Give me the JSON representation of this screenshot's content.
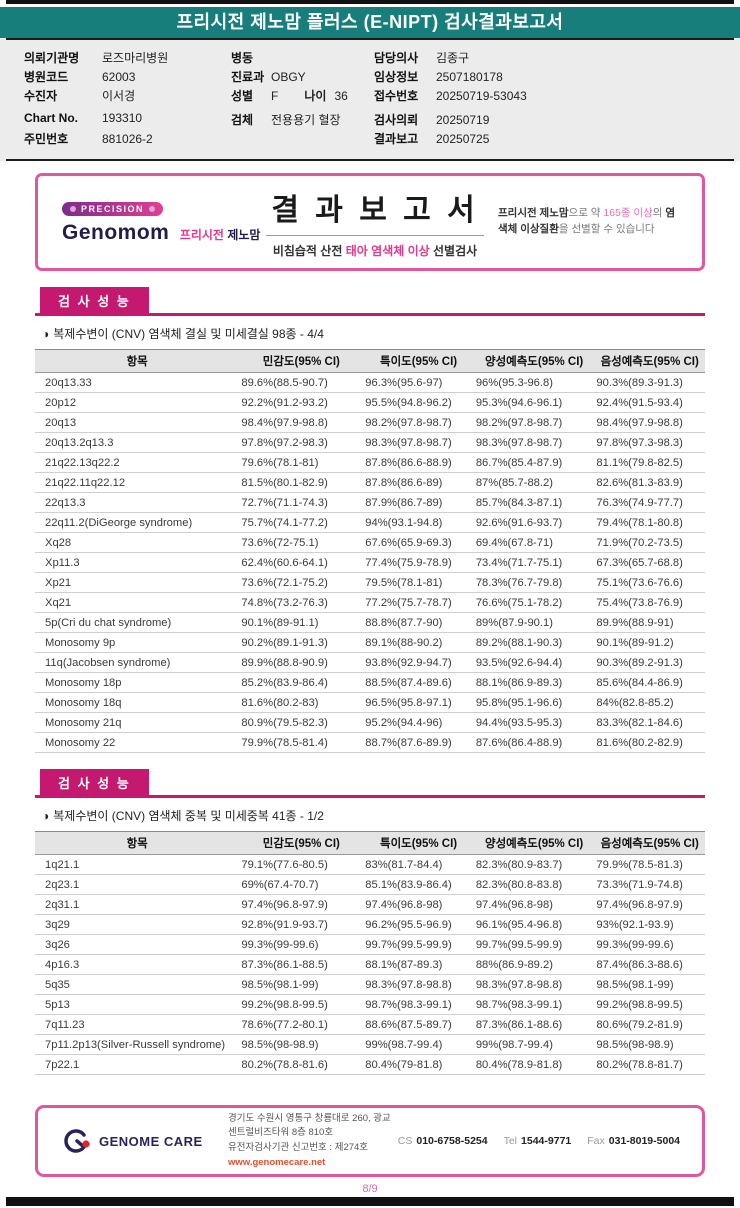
{
  "header": {
    "title": "프리시전 제노맘 플러스 (E-NIPT) 검사결과보고서"
  },
  "info_col1": [
    {
      "label": "의뢰기관명",
      "value": "로즈마리병원"
    },
    {
      "label": "병원코드",
      "value": "62003"
    },
    {
      "label": "수진자",
      "value": "이서경"
    },
    {
      "label": "Chart No.",
      "value": "193310"
    },
    {
      "label": "주민번호",
      "value": "881026-2"
    }
  ],
  "info_col2": [
    {
      "label": "병동",
      "value": ""
    },
    {
      "label": "진료과",
      "value": "OBGY"
    },
    {
      "label": "성별",
      "value": "F",
      "label2": "나이",
      "value2": "36"
    },
    {
      "label": "검체",
      "value": "전용용기 혈장"
    }
  ],
  "info_col3": [
    {
      "label": "담당의사",
      "value": "김종구"
    },
    {
      "label": "임상정보",
      "value": "2507180178"
    },
    {
      "label": "접수번호",
      "value": "20250719-53043"
    },
    {
      "label": "검사의뢰",
      "value": "20250719"
    },
    {
      "label": "결과보고",
      "value": "20250725"
    }
  ],
  "report_banner": {
    "badge": "PRECISION",
    "brand_name": "Genomom",
    "brand_kr_pink": "프리시전",
    "brand_kr_dark": "제노맘",
    "title": "결 과 보 고 서",
    "subtitle_prefix": "비침습적 산전 ",
    "subtitle_highlight": "태아 염색체 이상",
    "subtitle_suffix": " 선별검사",
    "note_seg1_bold": "프리시전 제노맘",
    "note_seg2": "으로 약 ",
    "note_seg3_pink": "165종 이상",
    "note_seg4": "의 ",
    "note_seg5_bold": "염색체 이상질환",
    "note_seg6": "을 선별할 수 있습니다"
  },
  "sections": [
    {
      "heading": "검 사 성 능",
      "bullet": "◑",
      "subtitle": "복제수변이 (CNV) 염색체 결실 및 미세결실 98종 - 4/4",
      "columns": [
        "항목",
        "민감도(95% CI)",
        "특이도(95% CI)",
        "양성예측도(95% CI)",
        "음성예측도(95% CI)"
      ],
      "rows": [
        [
          "20q13.33",
          "89.6%(88.5-90.7)",
          "96.3%(95.6-97)",
          "96%(95.3-96.8)",
          "90.3%(89.3-91.3)"
        ],
        [
          "20p12",
          "92.2%(91.2-93.2)",
          "95.5%(94.8-96.2)",
          "95.3%(94.6-96.1)",
          "92.4%(91.5-93.4)"
        ],
        [
          "20q13",
          "98.4%(97.9-98.8)",
          "98.2%(97.8-98.7)",
          "98.2%(97.8-98.7)",
          "98.4%(97.9-98.8)"
        ],
        [
          "20q13.2q13.3",
          "97.8%(97.2-98.3)",
          "98.3%(97.8-98.7)",
          "98.3%(97.8-98.7)",
          "97.8%(97.3-98.3)"
        ],
        [
          "21q22.13q22.2",
          "79.6%(78.1-81)",
          "87.8%(86.6-88.9)",
          "86.7%(85.4-87.9)",
          "81.1%(79.8-82.5)"
        ],
        [
          "21q22.11q22.12",
          "81.5%(80.1-82.9)",
          "87.8%(86.6-89)",
          "87%(85.7-88.2)",
          "82.6%(81.3-83.9)"
        ],
        [
          "22q13.3",
          "72.7%(71.1-74.3)",
          "87.9%(86.7-89)",
          "85.7%(84.3-87.1)",
          "76.3%(74.9-77.7)"
        ],
        [
          "22q11.2(DiGeorge syndrome)",
          "75.7%(74.1-77.2)",
          "94%(93.1-94.8)",
          "92.6%(91.6-93.7)",
          "79.4%(78.1-80.8)"
        ],
        [
          "Xq28",
          "73.6%(72-75.1)",
          "67.6%(65.9-69.3)",
          "69.4%(67.8-71)",
          "71.9%(70.2-73.5)"
        ],
        [
          "Xp11.3",
          "62.4%(60.6-64.1)",
          "77.4%(75.9-78.9)",
          "73.4%(71.7-75.1)",
          "67.3%(65.7-68.8)"
        ],
        [
          "Xp21",
          "73.6%(72.1-75.2)",
          "79.5%(78.1-81)",
          "78.3%(76.7-79.8)",
          "75.1%(73.6-76.6)"
        ],
        [
          "Xq21",
          "74.8%(73.2-76.3)",
          "77.2%(75.7-78.7)",
          "76.6%(75.1-78.2)",
          "75.4%(73.8-76.9)"
        ],
        [
          "5p(Cri du chat syndrome)",
          "90.1%(89-91.1)",
          "88.8%(87.7-90)",
          "89%(87.9-90.1)",
          "89.9%(88.9-91)"
        ],
        [
          "Monosomy 9p",
          "90.2%(89.1-91.3)",
          "89.1%(88-90.2)",
          "89.2%(88.1-90.3)",
          "90.1%(89-91.2)"
        ],
        [
          "11q(Jacobsen syndrome)",
          "89.9%(88.8-90.9)",
          "93.8%(92.9-94.7)",
          "93.5%(92.6-94.4)",
          "90.3%(89.2-91.3)"
        ],
        [
          "Monosomy 18p",
          "85.2%(83.9-86.4)",
          "88.5%(87.4-89.6)",
          "88.1%(86.9-89.3)",
          "85.6%(84.4-86.9)"
        ],
        [
          "Monosomy 18q",
          "81.6%(80.2-83)",
          "96.5%(95.8-97.1)",
          "95.8%(95.1-96.6)",
          "84%(82.8-85.2)"
        ],
        [
          "Monosomy 21q",
          "80.9%(79.5-82.3)",
          "95.2%(94.4-96)",
          "94.4%(93.5-95.3)",
          "83.3%(82.1-84.6)"
        ],
        [
          "Monosomy 22",
          "79.9%(78.5-81.4)",
          "88.7%(87.6-89.9)",
          "87.6%(86.4-88.9)",
          "81.6%(80.2-82.9)"
        ]
      ]
    },
    {
      "heading": "검 사 성 능",
      "bullet": "◑",
      "subtitle": "복제수변이 (CNV) 염색체 중복 및 미세중복 41종 - 1/2",
      "columns": [
        "항목",
        "민감도(95% CI)",
        "특이도(95% CI)",
        "양성예측도(95% CI)",
        "음성예측도(95% CI)"
      ],
      "rows": [
        [
          "1q21.1",
          "79.1%(77.6-80.5)",
          "83%(81.7-84.4)",
          "82.3%(80.9-83.7)",
          "79.9%(78.5-81.3)"
        ],
        [
          "2q23.1",
          "69%(67.4-70.7)",
          "85.1%(83.9-86.4)",
          "82.3%(80.8-83.8)",
          "73.3%(71.9-74.8)"
        ],
        [
          "2q31.1",
          "97.4%(96.8-97.9)",
          "97.4%(96.8-98)",
          "97.4%(96.8-98)",
          "97.4%(96.8-97.9)"
        ],
        [
          "3q29",
          "92.8%(91.9-93.7)",
          "96.2%(95.5-96.9)",
          "96.1%(95.4-96.8)",
          "93%(92.1-93.9)"
        ],
        [
          "3q26",
          "99.3%(99-99.6)",
          "99.7%(99.5-99.9)",
          "99.7%(99.5-99.9)",
          "99.3%(99-99.6)"
        ],
        [
          "4p16.3",
          "87.3%(86.1-88.5)",
          "88.1%(87-89.3)",
          "88%(86.9-89.2)",
          "87.4%(86.3-88.6)"
        ],
        [
          "5q35",
          "98.5%(98.1-99)",
          "98.3%(97.8-98.8)",
          "98.3%(97.8-98.8)",
          "98.5%(98.1-99)"
        ],
        [
          "5p13",
          "99.2%(98.8-99.5)",
          "98.7%(98.3-99.1)",
          "98.7%(98.3-99.1)",
          "99.2%(98.8-99.5)"
        ],
        [
          "7q11.23",
          "78.6%(77.2-80.1)",
          "88.6%(87.5-89.7)",
          "87.3%(86.1-88.6)",
          "80.6%(79.2-81.9)"
        ],
        [
          "7p11.2p13(Silver-Russell syndrome)",
          "98.5%(98-98.9)",
          "99%(98.7-99.4)",
          "99%(98.7-99.4)",
          "98.5%(98-98.9)"
        ],
        [
          "7p22.1",
          "80.2%(78.8-81.6)",
          "80.4%(79-81.8)",
          "80.4%(78.9-81.8)",
          "80.2%(78.8-81.7)"
        ]
      ]
    }
  ],
  "footer": {
    "company": "GENOME CARE",
    "address_line1": "경기도 수원시 영통구 창룡대로 260, 광교 센트럴비즈타워 8층 810호",
    "address_line2": "유전자검사기관 신고번호 : 제274호",
    "website": "www.genomecare.net",
    "cs_label": "CS",
    "cs_number": "010-6758-5254",
    "tel_label": "Tel",
    "tel_number": "1544-9771",
    "fax_label": "Fax",
    "fax_number": "031-8019-5004"
  },
  "page_number": "8/9",
  "colors": {
    "teal_banner": "#177e7c",
    "magenta_section": "#c4196f",
    "pink_border": "#e0579f",
    "link_red": "#e2502f"
  }
}
